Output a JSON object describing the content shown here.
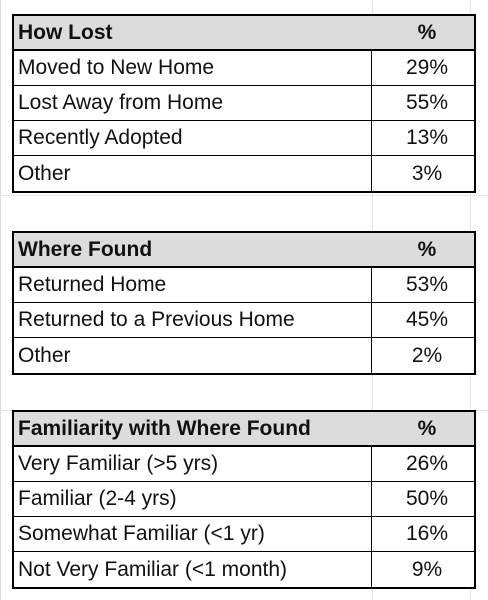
{
  "tables": [
    {
      "header": {
        "label": "How Lost",
        "pct": "%"
      },
      "rows": [
        {
          "label": "Moved to New Home",
          "pct": "29%"
        },
        {
          "label": "Lost Away from Home",
          "pct": "55%"
        },
        {
          "label": "Recently Adopted",
          "pct": "13%"
        },
        {
          "label": "Other",
          "pct": "3%"
        }
      ]
    },
    {
      "header": {
        "label": "Where Found",
        "pct": "%"
      },
      "rows": [
        {
          "label": "Returned Home",
          "pct": "53%"
        },
        {
          "label": "Returned to a Previous Home",
          "pct": "45%"
        },
        {
          "label": "Other",
          "pct": "2%"
        }
      ]
    },
    {
      "header": {
        "label": "Familiarity with Where Found",
        "pct": "%"
      },
      "rows": [
        {
          "label": "Very Familiar (>5 yrs)",
          "pct": "26%"
        },
        {
          "label": "Familiar (2-4 yrs)",
          "pct": "50%"
        },
        {
          "label": "Somewhat Familiar (<1 yr)",
          "pct": "16%"
        },
        {
          "label": "Not Very Familiar (<1 month)",
          "pct": "9%"
        }
      ]
    }
  ],
  "colors": {
    "header_bg": "#dcdcdc",
    "border": "#000000",
    "grid": "#e3e3e3"
  }
}
